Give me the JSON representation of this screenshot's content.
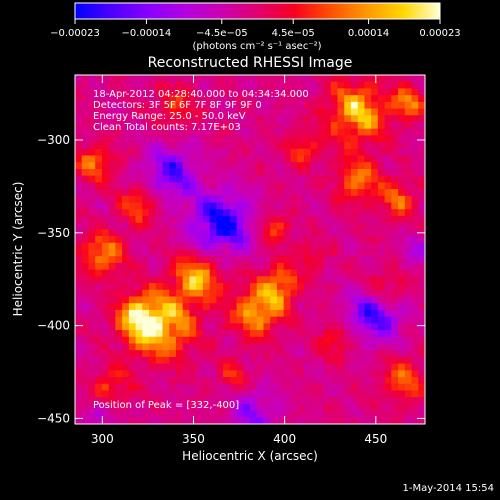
{
  "chart_data": {
    "type": "heatmap",
    "title": "Reconstructed RHESSI Image",
    "xlabel": "Heliocentric X (arcsec)",
    "ylabel": "Heliocentric Y (arcsec)",
    "xlim": [
      285,
      477
    ],
    "ylim": [
      -453,
      -265
    ],
    "x_ticks": [
      {
        "value": 300,
        "label": "300"
      },
      {
        "value": 350,
        "label": "350"
      },
      {
        "value": 400,
        "label": "400"
      },
      {
        "value": 450,
        "label": "450"
      }
    ],
    "y_ticks": [
      {
        "value": -300,
        "label": "−300"
      },
      {
        "value": -350,
        "label": "−350"
      },
      {
        "value": -400,
        "label": "−400"
      },
      {
        "value": -450,
        "label": "−450"
      }
    ],
    "colorbar": {
      "range": [
        -0.00023,
        0.00023
      ],
      "ticks": [
        {
          "value": -0.00023,
          "label": "−0.00023"
        },
        {
          "value": -0.00014,
          "label": "−0.00014"
        },
        {
          "value": -4.5e-05,
          "label": "−4.5e−05"
        },
        {
          "value": 4.5e-05,
          "label": "4.5e−05"
        },
        {
          "value": 0.00014,
          "label": "0.00014"
        },
        {
          "value": 0.00023,
          "label": "0.00023"
        }
      ],
      "units_label": "(photons cm⁻² s⁻¹ asec⁻²)",
      "colormap_stops": [
        "#0000ff",
        "#4c00ff",
        "#8800ff",
        "#b400e0",
        "#cc00b0",
        "#e00070",
        "#f80020",
        "#ff5000",
        "#ff9800",
        "#ffd800",
        "#ffffd8"
      ]
    },
    "annotations": {
      "time_range": "18-Apr-2012 04:28:40.000 to 04:34:34.000",
      "detectors": "Detectors: 3F 5F 6F 7F 8F 9F 9F 0",
      "energy_range": "Energy Range: 25.0 - 50.0 keV",
      "clean_info": "Clean    Total counts: 7.17E+03",
      "peak_position": "Position of Peak = [332,-400]"
    },
    "peak": {
      "x": 332,
      "y": -400
    },
    "blobs": [
      {
        "x": 332,
        "y": -400,
        "s": 12,
        "a": 1.0
      },
      {
        "x": 320,
        "y": -396,
        "s": 8,
        "a": 0.8
      },
      {
        "x": 352,
        "y": -375,
        "s": 9,
        "a": 0.85
      },
      {
        "x": 385,
        "y": -392,
        "s": 9,
        "a": 0.9
      },
      {
        "x": 398,
        "y": -378,
        "s": 7,
        "a": 0.75
      },
      {
        "x": 440,
        "y": -285,
        "s": 11,
        "a": 0.9
      },
      {
        "x": 468,
        "y": -280,
        "s": 6,
        "a": 0.7
      },
      {
        "x": 440,
        "y": -322,
        "s": 8,
        "a": 0.65
      },
      {
        "x": 462,
        "y": -332,
        "s": 7,
        "a": 0.55
      },
      {
        "x": 300,
        "y": -362,
        "s": 8,
        "a": 0.75
      },
      {
        "x": 296,
        "y": -312,
        "s": 7,
        "a": 0.6
      },
      {
        "x": 320,
        "y": -335,
        "s": 7,
        "a": 0.55
      },
      {
        "x": 455,
        "y": -382,
        "s": 8,
        "a": 0.6
      },
      {
        "x": 465,
        "y": -430,
        "s": 8,
        "a": 0.55
      },
      {
        "x": 410,
        "y": -305,
        "s": 6,
        "a": 0.5
      },
      {
        "x": 395,
        "y": -348,
        "s": 6,
        "a": 0.45
      },
      {
        "x": 305,
        "y": -433,
        "s": 7,
        "a": 0.5
      },
      {
        "x": 372,
        "y": -428,
        "s": 6,
        "a": 0.4
      },
      {
        "x": 428,
        "y": -408,
        "s": 6,
        "a": 0.45
      },
      {
        "x": 340,
        "y": -282,
        "s": 8,
        "a": 0.4
      },
      {
        "x": 415,
        "y": -362,
        "s": 5,
        "a": 0.35
      },
      {
        "x": 365,
        "y": -345,
        "s": 11,
        "a": -1.1
      },
      {
        "x": 338,
        "y": -318,
        "s": 10,
        "a": -0.75
      },
      {
        "x": 450,
        "y": -393,
        "s": 10,
        "a": -0.95
      },
      {
        "x": 383,
        "y": -447,
        "s": 9,
        "a": -0.5
      },
      {
        "x": 300,
        "y": -447,
        "s": 6,
        "a": -0.3
      },
      {
        "x": 473,
        "y": -360,
        "s": 6,
        "a": -0.35
      }
    ]
  },
  "footer": {
    "timestamp": "1-May-2014 15:54"
  }
}
